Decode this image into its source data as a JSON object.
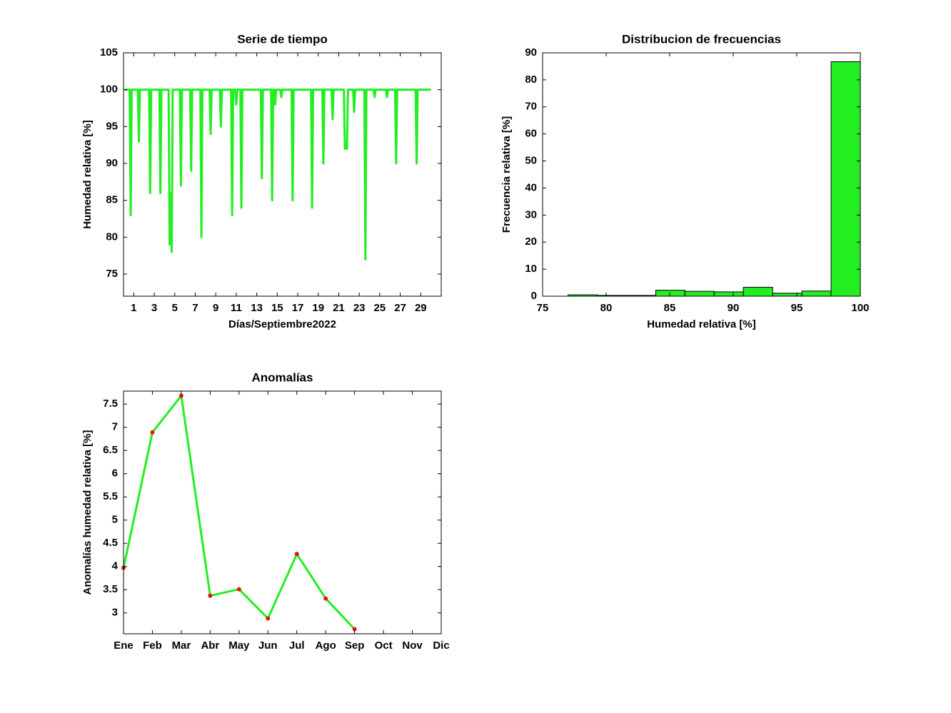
{
  "chart_data": [
    {
      "type": "line",
      "title": "Serie de tiempo",
      "xlabel": "Días/Septiembre2022",
      "ylabel": "Humedad relativa [%]",
      "color": "#22ee22",
      "x": [
        0.1,
        0.6,
        0.7,
        0.8,
        1.4,
        1.5,
        1.6,
        2.5,
        2.6,
        2.7,
        3.5,
        3.6,
        3.7,
        4.4,
        4.5,
        4.6,
        4.7,
        4.8,
        5.5,
        5.6,
        5.7,
        6.5,
        6.6,
        6.7,
        7.5,
        7.6,
        7.7,
        8.4,
        8.5,
        8.6,
        9.4,
        9.5,
        9.6,
        10.5,
        10.6,
        10.7,
        10.9,
        11.0,
        11.1,
        11.4,
        11.5,
        11.6,
        13.4,
        13.5,
        13.6,
        14.4,
        14.5,
        14.6,
        14.7,
        14.8,
        14.9,
        15.3,
        15.4,
        15.5,
        16.4,
        16.5,
        16.6,
        18.3,
        18.4,
        18.5,
        19.4,
        19.5,
        19.6,
        20.3,
        20.4,
        20.5,
        21.5,
        21.6,
        21.8,
        21.9,
        22.4,
        22.5,
        22.6,
        23.5,
        23.6,
        23.7,
        24.4,
        24.5,
        24.6,
        25.6,
        25.7,
        25.8,
        26.5,
        26.6,
        26.7,
        28.5,
        28.6,
        28.7,
        30.0
      ],
      "values": [
        100,
        100,
        83,
        100,
        100,
        93,
        100,
        100,
        86,
        100,
        100,
        86,
        100,
        100,
        79,
        86,
        78,
        100,
        100,
        87,
        100,
        100,
        89,
        100,
        100,
        80,
        100,
        100,
        94,
        100,
        100,
        95,
        100,
        100,
        83,
        100,
        100,
        98,
        100,
        100,
        84,
        100,
        100,
        88,
        100,
        100,
        85,
        100,
        100,
        98,
        100,
        100,
        99,
        100,
        100,
        85,
        100,
        100,
        84,
        100,
        100,
        90,
        100,
        100,
        96,
        100,
        100,
        92,
        92,
        100,
        100,
        97,
        100,
        100,
        77,
        100,
        100,
        99,
        100,
        100,
        99,
        100,
        100,
        90,
        100,
        100,
        90,
        100,
        100
      ],
      "xlim": [
        0,
        31
      ],
      "xticks": [
        1,
        3,
        5,
        7,
        9,
        11,
        13,
        15,
        17,
        19,
        21,
        23,
        25,
        27,
        29
      ],
      "ylim": [
        72,
        105
      ],
      "yticks": [
        75,
        80,
        85,
        90,
        95,
        100,
        105
      ]
    },
    {
      "type": "histogram",
      "title": "Distribucion de frecuencias",
      "xlabel": "Humedad relativa [%]",
      "ylabel": "Frecuencia relativa [%]",
      "color": "#22ee22",
      "edge_color": "#000000",
      "bins": [
        77,
        79.3,
        81.6,
        83.9,
        86.2,
        88.5,
        90.8,
        93.1,
        95.4,
        97.7,
        100
      ],
      "values": [
        0.5,
        0.3,
        0.3,
        2.2,
        1.8,
        1.6,
        3.3,
        1.1,
        1.9,
        86.7
      ],
      "xlim": [
        75,
        100
      ],
      "xticks": [
        75,
        80,
        85,
        90,
        95,
        100
      ],
      "ylim": [
        0,
        90
      ],
      "yticks": [
        0,
        10,
        20,
        30,
        40,
        50,
        60,
        70,
        80,
        90
      ]
    },
    {
      "type": "line",
      "title": "Anomalías",
      "ylabel": "Anomalías humedad relativa [%]",
      "color": "#22ee22",
      "marker_color": "#ee1111",
      "categories": [
        "Ene",
        "Feb",
        "Mar",
        "Abr",
        "May",
        "Jun",
        "Jul",
        "Ago",
        "Sep",
        "Oct",
        "Nov",
        "Dic"
      ],
      "values": [
        3.97,
        6.89,
        7.68,
        3.37,
        3.51,
        2.88,
        4.27,
        3.31,
        2.65,
        null,
        null,
        null
      ],
      "ylim": [
        2.55,
        7.78
      ],
      "yticks": [
        3,
        3.5,
        4,
        4.5,
        5,
        5.5,
        6,
        6.5,
        7,
        7.5
      ]
    }
  ]
}
